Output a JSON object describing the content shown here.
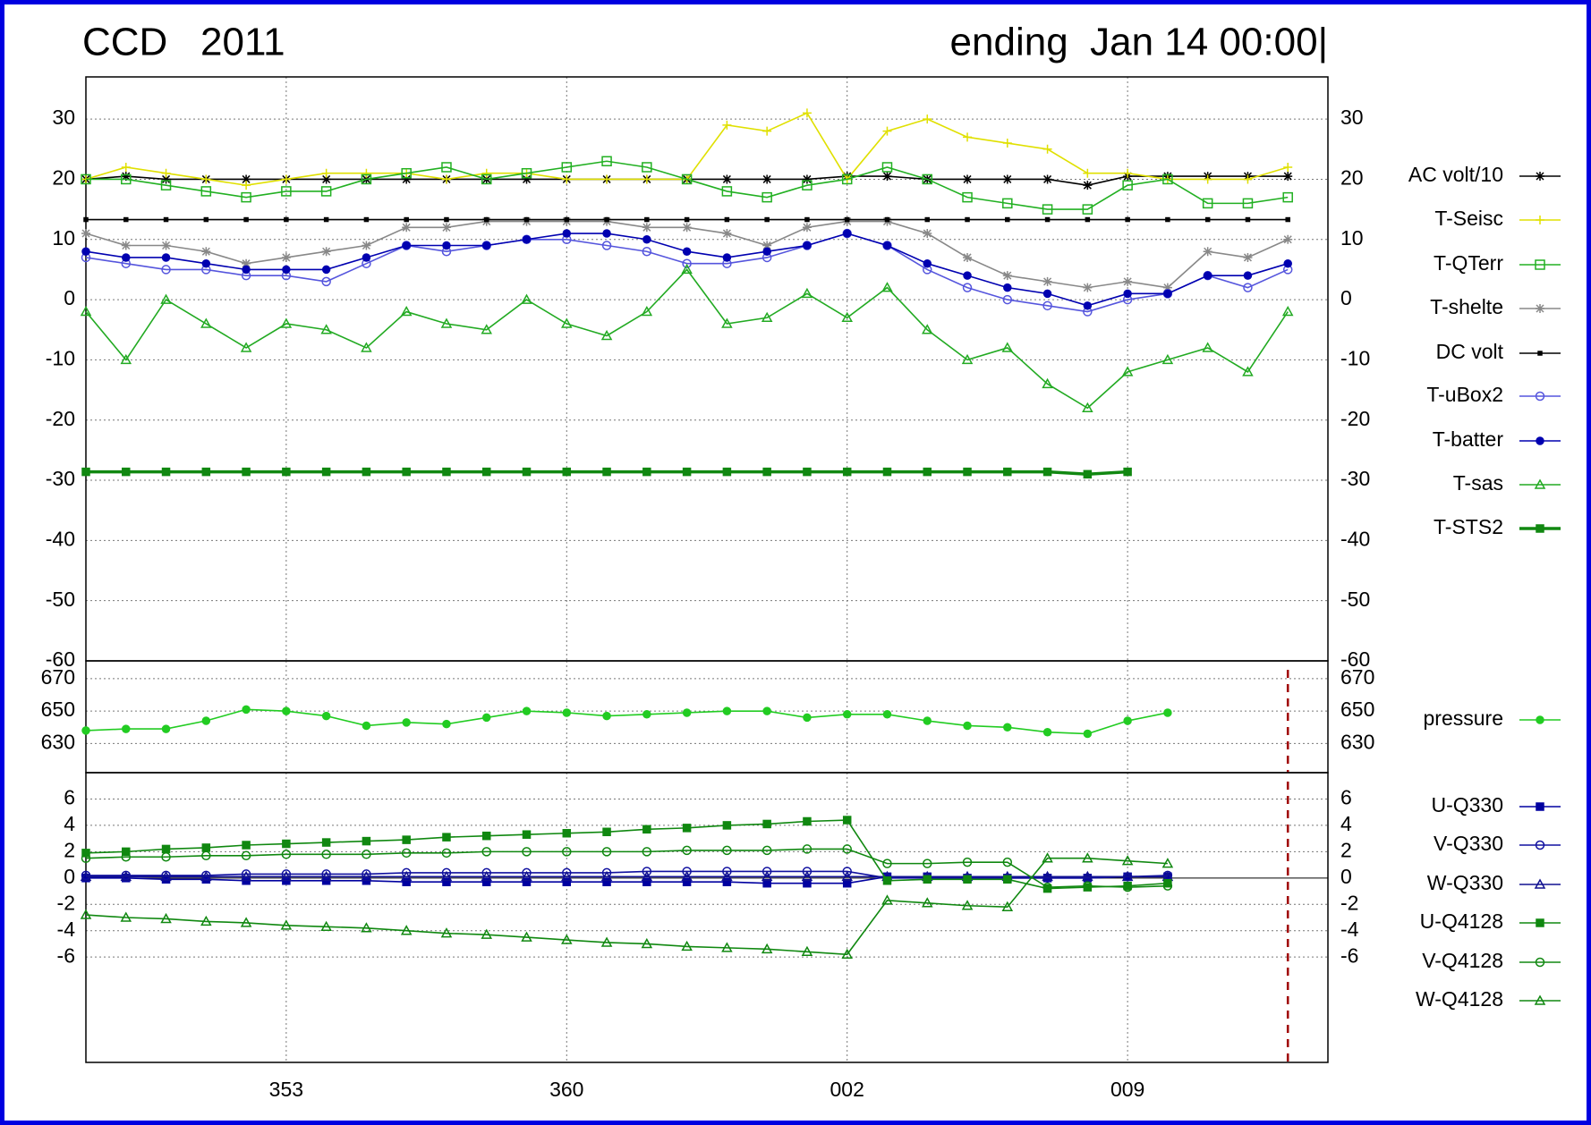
{
  "chart_data": [
    {
      "type": "line",
      "title": "CCD   2011",
      "subtitle": "ending  Jan 14 00:00|",
      "x": [
        348,
        349,
        350,
        351,
        352,
        353,
        354,
        355,
        356,
        357,
        358,
        359,
        360,
        361,
        362,
        363,
        364,
        365,
        366,
        367,
        368,
        369,
        370,
        371,
        372,
        373,
        374,
        375,
        376,
        377,
        378
      ],
      "ylim": [
        -60,
        37
      ],
      "yticks": [
        -60,
        -50,
        -40,
        -30,
        -20,
        -10,
        0,
        10,
        20,
        30
      ],
      "grid": true,
      "legend": "right",
      "series": [
        {
          "name": "AC volt/10",
          "color": "#000000",
          "marker": "star",
          "values": [
            20,
            20.5,
            20,
            20,
            20,
            20,
            20,
            20,
            20,
            20,
            20,
            20,
            20,
            20,
            20,
            20,
            20,
            20,
            20,
            20.5,
            20.5,
            20,
            20,
            20,
            20,
            19,
            20.5,
            20.5,
            20.5,
            20.5,
            20.5
          ]
        },
        {
          "name": "T-Seisc",
          "color": "#e0e000",
          "marker": "plus",
          "values": [
            20,
            22,
            21,
            20,
            19,
            20,
            21,
            21,
            21,
            20,
            21,
            21,
            20,
            20,
            20,
            20,
            29,
            28,
            31,
            20,
            28,
            30,
            27,
            26,
            25,
            21,
            21,
            20,
            20,
            20,
            22
          ]
        },
        {
          "name": "T-QTerr",
          "color": "#22b022",
          "marker": "square-open",
          "values": [
            20,
            20,
            19,
            18,
            17,
            18,
            18,
            20,
            21,
            22,
            20,
            21,
            22,
            23,
            22,
            20,
            18,
            17,
            19,
            20,
            22,
            20,
            17,
            16,
            15,
            15,
            19,
            20,
            16,
            16,
            17
          ]
        },
        {
          "name": "T-shelte",
          "color": "#888888",
          "marker": "star",
          "values": [
            11,
            9,
            9,
            8,
            6,
            7,
            8,
            9,
            12,
            12,
            13,
            13,
            13,
            13,
            12,
            12,
            11,
            9,
            12,
            13,
            13,
            11,
            7,
            4,
            3,
            2,
            3,
            2,
            8,
            7,
            10
          ]
        },
        {
          "name": "DC volt",
          "color": "#000000",
          "marker": "dot",
          "values": [
            13.3,
            13.3,
            13.3,
            13.3,
            13.3,
            13.3,
            13.3,
            13.3,
            13.3,
            13.3,
            13.3,
            13.3,
            13.3,
            13.3,
            13.3,
            13.3,
            13.3,
            13.3,
            13.3,
            13.3,
            13.3,
            13.3,
            13.3,
            13.3,
            13.3,
            13.3,
            13.3,
            13.3,
            13.3,
            13.3,
            13.3
          ]
        },
        {
          "name": "T-uBox2",
          "color": "#5555dd",
          "marker": "circle-open",
          "values": [
            7,
            6,
            5,
            5,
            4,
            4,
            3,
            6,
            9,
            8,
            9,
            10,
            10,
            9,
            8,
            6,
            6,
            7,
            9,
            11,
            9,
            5,
            2,
            0,
            -1,
            -2,
            0,
            1,
            4,
            2,
            5
          ]
        },
        {
          "name": "T-batter",
          "color": "#0000b0",
          "marker": "circle",
          "values": [
            8,
            7,
            7,
            6,
            5,
            5,
            5,
            7,
            9,
            9,
            9,
            10,
            11,
            11,
            10,
            8,
            7,
            8,
            9,
            11,
            9,
            6,
            4,
            2,
            1,
            -1,
            1,
            1,
            4,
            4,
            6
          ]
        },
        {
          "name": "T-sas",
          "color": "#22aa22",
          "marker": "triangle-open",
          "values": [
            -2,
            -10,
            0,
            -4,
            -8,
            -4,
            -5,
            -8,
            -2,
            -4,
            -5,
            0,
            -4,
            -6,
            -2,
            5,
            -4,
            -3,
            1,
            -3,
            2,
            -5,
            -10,
            -8,
            -14,
            -18,
            -12,
            -10,
            -8,
            -12,
            -2
          ]
        },
        {
          "name": "T-STS2",
          "color": "#118811",
          "marker": "square",
          "line_width": 3.5,
          "values": [
            -28.6,
            -28.6,
            -28.6,
            -28.6,
            -28.6,
            -28.6,
            -28.6,
            -28.6,
            -28.6,
            -28.6,
            -28.6,
            -28.6,
            -28.6,
            -28.6,
            -28.6,
            -28.6,
            -28.6,
            -28.6,
            -28.6,
            -28.6,
            -28.6,
            -28.6,
            -28.6,
            -28.6,
            -28.6,
            -29,
            -28.6,
            null,
            null,
            null,
            null
          ]
        }
      ]
    },
    {
      "type": "line",
      "x": [
        348,
        349,
        350,
        351,
        352,
        353,
        354,
        355,
        356,
        357,
        358,
        359,
        360,
        361,
        362,
        363,
        364,
        365,
        366,
        367,
        368,
        369,
        370,
        371,
        372,
        373,
        374,
        375
      ],
      "ylim": [
        612,
        681
      ],
      "yticks": [
        630,
        650,
        670
      ],
      "grid": true,
      "legend": "right",
      "vline": 378,
      "series": [
        {
          "name": "pressure",
          "color": "#22cc22",
          "marker": "circle",
          "values": [
            638,
            639,
            639,
            644,
            651,
            650,
            647,
            641,
            643,
            642,
            646,
            650,
            649,
            647,
            648,
            649,
            650,
            650,
            646,
            648,
            648,
            644,
            641,
            640,
            637,
            636,
            644,
            649
          ]
        }
      ]
    },
    {
      "type": "line",
      "x": [
        348,
        349,
        350,
        351,
        352,
        353,
        354,
        355,
        356,
        357,
        358,
        359,
        360,
        361,
        362,
        363,
        364,
        365,
        366,
        367,
        368,
        369,
        370,
        371,
        372,
        373,
        374,
        375
      ],
      "xlim": [
        348,
        379
      ],
      "xticks": [
        353,
        360,
        {
          "value": 367,
          "label": "002"
        },
        {
          "value": 374,
          "label": "009"
        }
      ],
      "ylim": [
        -14,
        8
      ],
      "yticks": [
        -6,
        -4,
        -2,
        0,
        2,
        4,
        6
      ],
      "grid": true,
      "legend": "right",
      "vline": 378,
      "series": [
        {
          "name": "U-Q330",
          "color": "#0000a0",
          "marker": "square",
          "values": [
            0,
            0,
            -0.1,
            -0.1,
            -0.2,
            -0.2,
            -0.2,
            -0.2,
            -0.3,
            -0.3,
            -0.3,
            -0.3,
            -0.3,
            -0.3,
            -0.3,
            -0.3,
            -0.3,
            -0.4,
            -0.4,
            -0.4,
            0.1,
            0.1,
            0,
            0,
            0,
            0,
            0.1,
            0.1
          ]
        },
        {
          "name": "V-Q330",
          "color": "#1010a0",
          "marker": "circle-open",
          "values": [
            0.2,
            0.2,
            0.2,
            0.2,
            0.3,
            0.3,
            0.3,
            0.3,
            0.4,
            0.4,
            0.4,
            0.4,
            0.4,
            0.4,
            0.5,
            0.5,
            0.5,
            0.5,
            0.5,
            0.5,
            0,
            0,
            0,
            0,
            0,
            0,
            0.1,
            0.2
          ]
        },
        {
          "name": "W-Q330",
          "color": "#101090",
          "marker": "triangle-open",
          "values": [
            0.1,
            0.1,
            0.1,
            0.1,
            0.1,
            0.1,
            0.1,
            0.1,
            0.1,
            0.1,
            0.1,
            0.1,
            0.1,
            0.1,
            0.1,
            0.1,
            0.1,
            0.1,
            0.1,
            0.1,
            0.1,
            0.1,
            0.1,
            0.1,
            0.1,
            0.1,
            0.1,
            0.1
          ]
        },
        {
          "name": "U-Q4128",
          "color": "#108810",
          "marker": "square",
          "values": [
            1.9,
            2.0,
            2.2,
            2.3,
            2.5,
            2.6,
            2.7,
            2.8,
            2.9,
            3.1,
            3.2,
            3.3,
            3.4,
            3.5,
            3.7,
            3.8,
            4.0,
            4.1,
            4.3,
            4.4,
            -0.2,
            -0.1,
            -0.1,
            -0.1,
            -0.8,
            -0.7,
            -0.6,
            -0.4
          ]
        },
        {
          "name": "V-Q4128",
          "color": "#108810",
          "marker": "circle-open",
          "values": [
            1.5,
            1.6,
            1.6,
            1.7,
            1.7,
            1.8,
            1.8,
            1.8,
            1.9,
            1.9,
            2.0,
            2.0,
            2.0,
            2.0,
            2.0,
            2.1,
            2.1,
            2.1,
            2.2,
            2.2,
            1.1,
            1.1,
            1.2,
            1.2,
            -0.7,
            -0.6,
            -0.7,
            -0.6
          ]
        },
        {
          "name": "W-Q4128",
          "color": "#108810",
          "marker": "triangle-open",
          "values": [
            -2.8,
            -3.0,
            -3.1,
            -3.3,
            -3.4,
            -3.6,
            -3.7,
            -3.8,
            -4.0,
            -4.2,
            -4.3,
            -4.5,
            -4.7,
            -4.9,
            -5.0,
            -5.2,
            -5.3,
            -5.4,
            -5.6,
            -5.8,
            -1.7,
            -1.9,
            -2.1,
            -2.2,
            1.5,
            1.5,
            1.3,
            1.1
          ]
        }
      ]
    }
  ]
}
